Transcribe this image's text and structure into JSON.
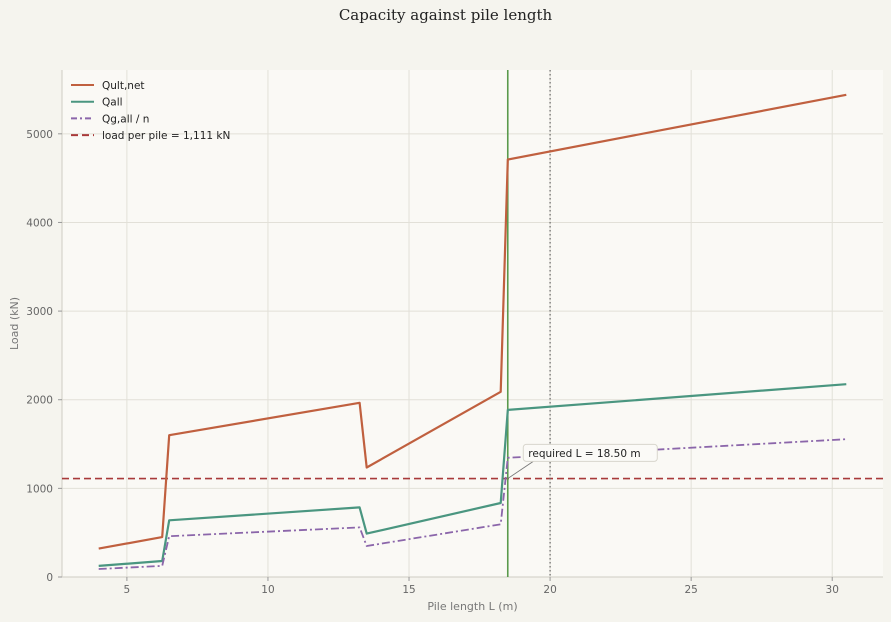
{
  "chart_data": {
    "type": "line",
    "title": "Capacity against pile length",
    "xlabel": "Pile length L (m)",
    "ylabel": "Load (kN)",
    "xlim": [
      2.7,
      31.8
    ],
    "ylim": [
      0,
      5720
    ],
    "xticks": [
      5,
      10,
      15,
      20,
      25,
      30
    ],
    "yticks": [
      0,
      1000,
      2000,
      3000,
      4000,
      5000
    ],
    "grid": true,
    "legend_position": "top-left",
    "series": [
      {
        "name": "Qult,net",
        "color": "#c0603f",
        "style": "solid",
        "x": [
          4.0,
          6.25,
          6.5,
          13.25,
          13.5,
          18.25,
          18.5,
          30.5
        ],
        "y": [
          320,
          450,
          1600,
          1965,
          1235,
          2090,
          4710,
          5440
        ]
      },
      {
        "name": "Qall",
        "color": "#4a9680",
        "style": "solid",
        "x": [
          4.0,
          6.25,
          6.5,
          13.25,
          13.5,
          18.25,
          18.5,
          30.5
        ],
        "y": [
          125,
          180,
          640,
          785,
          490,
          835,
          1885,
          2175
        ]
      },
      {
        "name": "Qg,all / n",
        "color": "#8b66aa",
        "style": "dashdot",
        "x": [
          4.0,
          6.25,
          6.5,
          13.25,
          13.5,
          18.25,
          18.5,
          30.5
        ],
        "y": [
          90,
          125,
          460,
          560,
          350,
          595,
          1345,
          1555
        ]
      }
    ],
    "reference_lines": [
      {
        "name": "load per pile = 1,111 kN",
        "orientation": "horizontal",
        "value": 1111,
        "color": "#a83a3a",
        "style": "dashed",
        "in_legend": true
      },
      {
        "orientation": "vertical",
        "value": 18.5,
        "color": "#5a9a4c",
        "style": "solid",
        "in_legend": false
      },
      {
        "orientation": "vertical",
        "value": 20,
        "color": "#666666",
        "style": "dotted",
        "in_legend": false
      }
    ],
    "annotation": {
      "text": "required L = 18.50 m",
      "point": [
        18.5,
        1111
      ],
      "text_at": [
        19.05,
        1400
      ]
    }
  }
}
